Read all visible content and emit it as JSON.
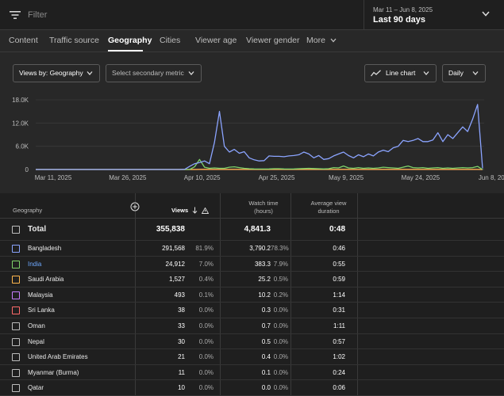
{
  "topbar": {
    "filter_placeholder": "Filter",
    "date_range": "Mar 11 – Jun 8, 2025",
    "date_label": "Last 90 days"
  },
  "tabs": [
    {
      "label": "Content"
    },
    {
      "label": "Traffic source"
    },
    {
      "label": "Geography"
    },
    {
      "label": "Cities"
    },
    {
      "label": "Viewer age"
    },
    {
      "label": "Viewer gender"
    },
    {
      "label": "More"
    }
  ],
  "controls": {
    "views_by": "Views by: Geography",
    "secondary": "Select secondary metric",
    "chart_type": "Line chart",
    "interval": "Daily"
  },
  "chart_data": {
    "type": "line",
    "y_ticks": [
      "18.0K",
      "12.0K",
      "6.0K",
      "0"
    ],
    "ylim": [
      0,
      18000
    ],
    "x_ticks": [
      "Mar 11, 2025",
      "Mar 26, 2025",
      "Apr 10, 2025",
      "Apr 25, 2025",
      "May 9, 2025",
      "May 24, 2025",
      "Jun 8, 2025"
    ],
    "x_tick_index": [
      0,
      15,
      30,
      45,
      59,
      74,
      89
    ],
    "series": [
      {
        "color": "#8ba4ff",
        "values": [
          0,
          0,
          0,
          0,
          0,
          0,
          0,
          0,
          0,
          0,
          0,
          0,
          0,
          0,
          0,
          0,
          0,
          0,
          0,
          0,
          0,
          0,
          0,
          0,
          0,
          0,
          0,
          0,
          0,
          0,
          50,
          800,
          1500,
          1800,
          2200,
          1500,
          7000,
          15000,
          6000,
          4500,
          5200,
          4200,
          4600,
          3000,
          2500,
          2200,
          2300,
          3500,
          3400,
          3400,
          3300,
          3500,
          3600,
          3800,
          4500,
          4000,
          3000,
          3600,
          2600,
          2800,
          3500,
          4000,
          4500,
          3600,
          3000,
          3800,
          3300,
          4000,
          3500,
          4500,
          5000,
          4600,
          5600,
          6000,
          7500,
          7200,
          7500,
          8000,
          7200,
          7200,
          7600,
          9500,
          7200,
          9000,
          8000,
          9500,
          11000,
          9800,
          13000,
          16800,
          300
        ]
      },
      {
        "color": "#7fd46a",
        "values": [
          0,
          0,
          0,
          0,
          0,
          0,
          0,
          0,
          0,
          0,
          0,
          0,
          0,
          0,
          0,
          0,
          0,
          0,
          0,
          0,
          0,
          0,
          0,
          0,
          0,
          0,
          0,
          0,
          0,
          0,
          0,
          0,
          700,
          2600,
          600,
          300,
          400,
          300,
          300,
          600,
          700,
          500,
          300,
          200,
          150,
          120,
          120,
          150,
          200,
          200,
          150,
          120,
          150,
          200,
          250,
          300,
          250,
          200,
          150,
          200,
          500,
          400,
          900,
          400,
          300,
          500,
          300,
          400,
          300,
          400,
          600,
          500,
          400,
          300,
          600,
          900,
          500,
          400,
          500,
          300,
          400,
          500,
          300,
          400,
          300,
          400,
          500,
          400,
          500,
          800,
          0
        ]
      },
      {
        "color": "#ffb74d",
        "values": [
          0,
          0,
          0,
          0,
          0,
          0,
          0,
          0,
          0,
          0,
          0,
          0,
          0,
          0,
          0,
          0,
          0,
          0,
          0,
          0,
          0,
          0,
          0,
          0,
          0,
          0,
          0,
          0,
          0,
          0,
          0,
          0,
          0,
          20,
          30,
          20,
          20,
          20,
          20,
          30,
          20,
          20,
          20,
          20,
          20,
          20,
          20,
          20,
          20,
          20,
          20,
          20,
          20,
          20,
          20,
          20,
          20,
          20,
          20,
          20,
          20,
          20,
          20,
          20,
          20,
          20,
          20,
          20,
          20,
          20,
          20,
          20,
          20,
          20,
          20,
          20,
          20,
          20,
          20,
          20,
          20,
          20,
          20,
          20,
          20,
          20,
          20,
          20,
          20,
          20,
          0
        ]
      },
      {
        "color": "#ff6b6b",
        "values": [
          0,
          0,
          0,
          0,
          0,
          0,
          0,
          0,
          0,
          0,
          0,
          0,
          0,
          0,
          0,
          0,
          0,
          0,
          0,
          0,
          0,
          0,
          0,
          0,
          0,
          0,
          0,
          0,
          0,
          0,
          0,
          0,
          0,
          0,
          30,
          10,
          10,
          10,
          10,
          10,
          10,
          10,
          10,
          10,
          10,
          10,
          10,
          10,
          10,
          10,
          10,
          10,
          10,
          10,
          10,
          10,
          10,
          10,
          10,
          10,
          10,
          10,
          10,
          10,
          10,
          10,
          10,
          10,
          10,
          10,
          10,
          10,
          10,
          10,
          10,
          10,
          10,
          10,
          10,
          10,
          10,
          10,
          10,
          10,
          10,
          10,
          10,
          10,
          10,
          10,
          0
        ]
      }
    ]
  },
  "table": {
    "headers": {
      "geography": "Geography",
      "views": "Views",
      "watch_time_1": "Watch time",
      "watch_time_2": "(hours)",
      "avd_1": "Average view",
      "avd_2": "duration"
    },
    "total": {
      "name": "Total",
      "views": "355,838",
      "watch": "4,841.3",
      "avd": "0:48"
    },
    "rows": [
      {
        "name": "Bangladesh",
        "views": "291,568",
        "vp": "81.9%",
        "watch": "3,790.2",
        "wp": "78.3%",
        "avd": "0:46",
        "box": "#8ba4ff",
        "name_color": "#e8e8e8"
      },
      {
        "name": "India",
        "views": "24,912",
        "vp": "7.0%",
        "watch": "383.3",
        "wp": "7.9%",
        "avd": "0:55",
        "box": "#7fd46a",
        "name_color": "#6ea8ff"
      },
      {
        "name": "Saudi Arabia",
        "views": "1,527",
        "vp": "0.4%",
        "watch": "25.2",
        "wp": "0.5%",
        "avd": "0:59",
        "box": "#ffb74d",
        "name_color": "#e8e8e8"
      },
      {
        "name": "Malaysia",
        "views": "493",
        "vp": "0.1%",
        "watch": "10.2",
        "wp": "0.2%",
        "avd": "1:14",
        "box": "#c77dff",
        "name_color": "#e8e8e8"
      },
      {
        "name": "Sri Lanka",
        "views": "38",
        "vp": "0.0%",
        "watch": "0.3",
        "wp": "0.0%",
        "avd": "0:31",
        "box": "#ff6b6b",
        "name_color": "#e8e8e8"
      },
      {
        "name": "Oman",
        "views": "33",
        "vp": "0.0%",
        "watch": "0.7",
        "wp": "0.0%",
        "avd": "1:11",
        "box": "#bdbdbd",
        "name_color": "#e8e8e8"
      },
      {
        "name": "Nepal",
        "views": "30",
        "vp": "0.0%",
        "watch": "0.5",
        "wp": "0.0%",
        "avd": "0:57",
        "box": "#bdbdbd",
        "name_color": "#e8e8e8"
      },
      {
        "name": "United Arab Emirates",
        "views": "21",
        "vp": "0.0%",
        "watch": "0.4",
        "wp": "0.0%",
        "avd": "1:02",
        "box": "#bdbdbd",
        "name_color": "#e8e8e8"
      },
      {
        "name": "Myanmar (Burma)",
        "views": "11",
        "vp": "0.0%",
        "watch": "0.1",
        "wp": "0.0%",
        "avd": "0:24",
        "box": "#bdbdbd",
        "name_color": "#e8e8e8"
      },
      {
        "name": "Qatar",
        "views": "10",
        "vp": "0.0%",
        "watch": "0.0",
        "wp": "0.0%",
        "avd": "0:06",
        "box": "#bdbdbd",
        "name_color": "#e8e8e8"
      }
    ]
  }
}
